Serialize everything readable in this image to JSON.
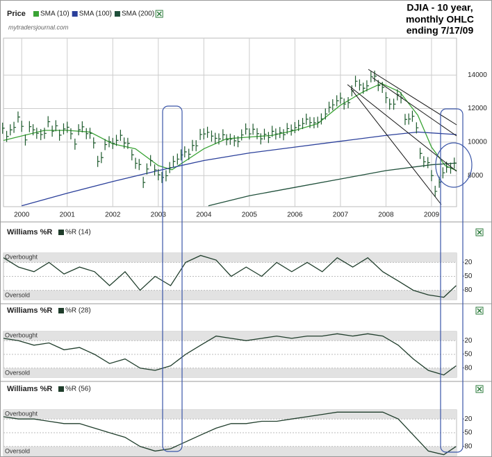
{
  "chart_data": [
    {
      "type": "ohlc",
      "label": "Price",
      "watermark": "mytradersjournal.com",
      "title": [
        "DJIA - 10 year,",
        "monthly OHLC",
        "ending 7/17/09"
      ],
      "color": "#1d5a2c",
      "x": [
        1999.58,
        1999.67,
        1999.75,
        1999.83,
        1999.92,
        2000.0,
        2000.08,
        2000.17,
        2000.25,
        2000.33,
        2000.42,
        2000.5,
        2000.58,
        2000.67,
        2000.75,
        2000.83,
        2000.92,
        2001.0,
        2001.08,
        2001.17,
        2001.25,
        2001.33,
        2001.42,
        2001.5,
        2001.58,
        2001.67,
        2001.75,
        2001.83,
        2001.92,
        2002.0,
        2002.08,
        2002.17,
        2002.25,
        2002.33,
        2002.42,
        2002.5,
        2002.58,
        2002.67,
        2002.75,
        2002.83,
        2002.92,
        2003.0,
        2003.08,
        2003.17,
        2003.25,
        2003.33,
        2003.42,
        2003.5,
        2003.58,
        2003.67,
        2003.75,
        2003.83,
        2003.92,
        2004.0,
        2004.08,
        2004.17,
        2004.25,
        2004.33,
        2004.42,
        2004.5,
        2004.58,
        2004.67,
        2004.75,
        2004.83,
        2004.92,
        2005.0,
        2005.08,
        2005.17,
        2005.25,
        2005.33,
        2005.42,
        2005.5,
        2005.58,
        2005.67,
        2005.75,
        2005.83,
        2005.92,
        2006.0,
        2006.08,
        2006.17,
        2006.25,
        2006.33,
        2006.42,
        2006.5,
        2006.58,
        2006.67,
        2006.75,
        2006.83,
        2006.92,
        2007.0,
        2007.08,
        2007.17,
        2007.25,
        2007.33,
        2007.42,
        2007.5,
        2007.58,
        2007.67,
        2007.75,
        2007.83,
        2007.92,
        2008.0,
        2008.08,
        2008.17,
        2008.25,
        2008.33,
        2008.42,
        2008.5,
        2008.58,
        2008.67,
        2008.75,
        2008.83,
        2008.92,
        2009.0,
        2009.08,
        2009.17,
        2009.25,
        2009.33,
        2009.42,
        2009.5
      ],
      "close": [
        10829,
        10337,
        10729,
        10878,
        11497,
        10940,
        10128,
        10922,
        10734,
        10522,
        10448,
        10522,
        11215,
        10651,
        10971,
        10415,
        10788,
        10887,
        10495,
        9879,
        10735,
        10912,
        10502,
        10523,
        9950,
        8848,
        9075,
        9852,
        10022,
        9920,
        10106,
        10404,
        9946,
        9925,
        9243,
        8737,
        8664,
        7592,
        8397,
        8896,
        8342,
        8054,
        7891,
        7992,
        8480,
        8850,
        8985,
        9234,
        9416,
        9275,
        9801,
        9782,
        10454,
        10488,
        10584,
        10358,
        10226,
        10188,
        10435,
        10140,
        10174,
        10080,
        10027,
        10428,
        10783,
        10490,
        10766,
        10504,
        10193,
        10467,
        10275,
        10641,
        10482,
        10569,
        10440,
        10806,
        10718,
        10865,
        10993,
        11109,
        11367,
        11168,
        11150,
        11186,
        11381,
        11679,
        12081,
        12222,
        12463,
        12622,
        12269,
        12354,
        13063,
        13628,
        13409,
        13212,
        13358,
        13896,
        13930,
        13372,
        13265,
        12650,
        12266,
        12263,
        12820,
        12638,
        11350,
        11378,
        11544,
        10851,
        9325,
        8829,
        8776,
        8001,
        7063,
        7609,
        8168,
        8500,
        8447,
        8744
      ],
      "sma": [
        {
          "name": "SMA (10)",
          "color": "#3aa335",
          "x": [
            1999.6,
            2000.5,
            2001.0,
            2001.5,
            2002.0,
            2002.5,
            2003.0,
            2003.3,
            2004.0,
            2004.5,
            2005.0,
            2005.5,
            2006.0,
            2006.5,
            2007.0,
            2007.5,
            2007.9,
            2008.3,
            2008.7,
            2009.0,
            2009.3,
            2009.55
          ],
          "values": [
            10100,
            10700,
            10700,
            10600,
            9900,
            9600,
            8600,
            8350,
            9600,
            10200,
            10300,
            10400,
            10700,
            11100,
            12200,
            13000,
            13500,
            13000,
            11600,
            9700,
            8600,
            8300
          ]
        },
        {
          "name": "SMA (100)",
          "color": "#2a3f9a",
          "x": [
            2000.0,
            2001.0,
            2002.0,
            2003.0,
            2004.0,
            2005.0,
            2006.0,
            2007.0,
            2008.0,
            2008.7,
            2009.55
          ],
          "values": [
            6200,
            6950,
            7650,
            8300,
            8900,
            9350,
            9700,
            10050,
            10400,
            10600,
            10450
          ]
        },
        {
          "name": "SMA (200)",
          "color": "#1f4f3a",
          "x": [
            2004.1,
            2005.0,
            2006.0,
            2007.0,
            2008.0,
            2009.0,
            2009.55
          ],
          "values": [
            6200,
            6800,
            7300,
            7800,
            8300,
            8650,
            8750
          ]
        }
      ],
      "xlim": [
        1999.6,
        2009.55
      ],
      "xticks": [
        2000,
        2001,
        2002,
        2003,
        2004,
        2005,
        2006,
        2007,
        2008,
        2009
      ],
      "ylim": [
        6150,
        16200
      ],
      "yticks": [
        8000,
        10000,
        12000,
        14000
      ],
      "grid": true
    },
    {
      "type": "line",
      "title": "Williams %R",
      "overbought_label": "Overbought",
      "oversold_label": "Oversold",
      "x": [
        1999.6,
        1999.93,
        2000.27,
        2000.6,
        2000.93,
        2001.27,
        2001.6,
        2001.93,
        2002.27,
        2002.6,
        2002.93,
        2003.27,
        2003.6,
        2003.93,
        2004.27,
        2004.6,
        2004.93,
        2005.27,
        2005.6,
        2005.93,
        2006.27,
        2006.6,
        2006.93,
        2007.27,
        2007.6,
        2007.93,
        2008.27,
        2008.6,
        2008.93,
        2009.27,
        2009.54
      ],
      "series": [
        {
          "name": "%R (14)",
          "color": "#1f3d2b",
          "values": [
            -10,
            -30,
            -40,
            -20,
            -45,
            -30,
            -40,
            -70,
            -40,
            -80,
            -50,
            -70,
            -20,
            -5,
            -15,
            -50,
            -30,
            -50,
            -20,
            -40,
            -20,
            -40,
            -10,
            -30,
            -10,
            -40,
            -60,
            -80,
            -90,
            -95,
            -70
          ]
        }
      ],
      "xlim": [
        1999.6,
        2009.55
      ],
      "ylim": [
        -100,
        0
      ],
      "yticks": [
        -20,
        -50,
        -80
      ]
    },
    {
      "type": "line",
      "title": "Williams %R",
      "overbought_label": "Overbought",
      "oversold_label": "Oversold",
      "x": [
        1999.6,
        1999.93,
        2000.27,
        2000.6,
        2000.93,
        2001.27,
        2001.6,
        2001.93,
        2002.27,
        2002.6,
        2002.93,
        2003.27,
        2003.6,
        2003.93,
        2004.27,
        2004.6,
        2004.93,
        2005.27,
        2005.6,
        2005.93,
        2006.27,
        2006.6,
        2006.93,
        2007.27,
        2007.6,
        2007.93,
        2008.27,
        2008.6,
        2008.93,
        2009.27,
        2009.54
      ],
      "series": [
        {
          "name": "%R (28)",
          "color": "#1f3d2b",
          "values": [
            -15,
            -20,
            -30,
            -25,
            -40,
            -35,
            -50,
            -70,
            -60,
            -80,
            -85,
            -75,
            -50,
            -30,
            -10,
            -15,
            -20,
            -15,
            -10,
            -15,
            -10,
            -10,
            -5,
            -10,
            -5,
            -10,
            -30,
            -60,
            -85,
            -95,
            -75
          ]
        }
      ],
      "xlim": [
        1999.6,
        2009.55
      ],
      "ylim": [
        -100,
        0
      ],
      "yticks": [
        -20,
        -50,
        -80
      ]
    },
    {
      "type": "line",
      "title": "Williams %R",
      "overbought_label": "Overbought",
      "oversold_label": "Oversold",
      "x": [
        1999.6,
        1999.93,
        2000.27,
        2000.6,
        2000.93,
        2001.27,
        2001.6,
        2001.93,
        2002.27,
        2002.6,
        2002.93,
        2003.27,
        2003.6,
        2003.93,
        2004.27,
        2004.6,
        2004.93,
        2005.27,
        2005.6,
        2005.93,
        2006.27,
        2006.6,
        2006.93,
        2007.27,
        2007.6,
        2007.93,
        2008.27,
        2008.6,
        2008.93,
        2009.27,
        2009.54
      ],
      "series": [
        {
          "name": "%R (56)",
          "color": "#1f3d2b",
          "values": [
            -15,
            -20,
            -20,
            -25,
            -30,
            -30,
            -40,
            -50,
            -60,
            -80,
            -90,
            -85,
            -70,
            -55,
            -40,
            -30,
            -30,
            -25,
            -25,
            -20,
            -15,
            -10,
            -5,
            -5,
            -5,
            -5,
            -20,
            -55,
            -90,
            -98,
            -80
          ]
        }
      ],
      "xlim": [
        1999.6,
        2009.55
      ],
      "ylim": [
        -100,
        0
      ],
      "yticks": [
        -20,
        -50,
        -80
      ]
    }
  ]
}
